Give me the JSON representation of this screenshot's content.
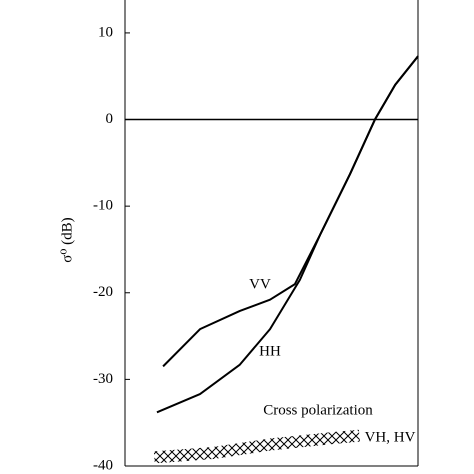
{
  "chart_data": {
    "type": "line",
    "y_label": "σ⁰ (dB)",
    "annotation": "Cross polarization",
    "xlim": [
      0,
      100
    ],
    "ylim": [
      -40,
      13.8
    ],
    "yticks": [
      10,
      0,
      -10,
      -20,
      -30,
      -40
    ],
    "reference_line": 0,
    "series": [
      {
        "name": "VV",
        "color": "#000000",
        "style": "solid",
        "x": [
          13,
          25.6,
          39.2,
          49.5,
          58,
          66.6,
          76.8,
          85.3,
          92.2,
          100
        ],
        "values": [
          -28.5,
          -24.2,
          -22.1,
          -20.8,
          -19,
          -13.3,
          -6.3,
          0,
          4,
          7.3
        ]
      },
      {
        "name": "HH",
        "color": "#000000",
        "style": "solid",
        "x": [
          10.9,
          25.6,
          39.2,
          49.5,
          59.7,
          66.6,
          76.8,
          85.3,
          92.2,
          100
        ],
        "values": [
          -33.8,
          -31.7,
          -28.3,
          -24.2,
          -18.5,
          -13.3,
          -6.3,
          0,
          4,
          7.3
        ]
      },
      {
        "name": "VH, HV",
        "color": "#000000",
        "style": "hatched",
        "x": [
          10,
          30,
          50,
          70,
          80
        ],
        "values": [
          -39,
          -38.5,
          -37.5,
          -36.8,
          -36.5
        ]
      }
    ]
  }
}
